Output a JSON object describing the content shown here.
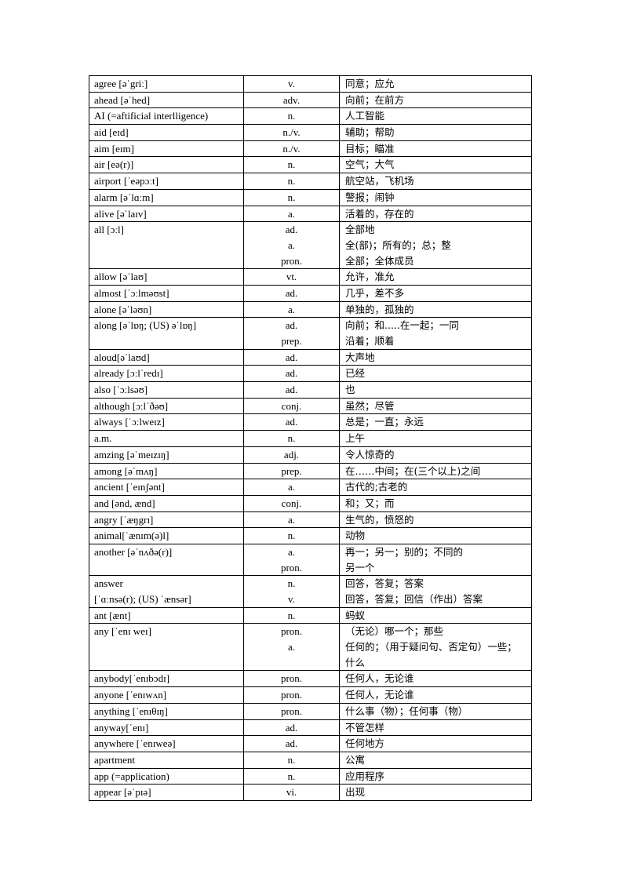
{
  "vocabulary": [
    {
      "word": [
        "agree [əˈgriː]"
      ],
      "pos": [
        "v."
      ],
      "meaning": [
        "同意；应允"
      ]
    },
    {
      "word": [
        "ahead [əˈhed]"
      ],
      "pos": [
        "adv."
      ],
      "meaning": [
        "向前；在前方"
      ]
    },
    {
      "word": [
        "AI (=aftificial interlligence)"
      ],
      "pos": [
        "n."
      ],
      "meaning": [
        "人工智能"
      ]
    },
    {
      "word": [
        "aid [eɪd]"
      ],
      "pos": [
        "n./v."
      ],
      "meaning": [
        "辅助；帮助"
      ]
    },
    {
      "word": [
        "aim [eɪm]"
      ],
      "pos": [
        "n./v."
      ],
      "meaning": [
        "目标；瞄准"
      ]
    },
    {
      "word": [
        "air [eə(r)]"
      ],
      "pos": [
        "n."
      ],
      "meaning": [
        "空气；大气"
      ]
    },
    {
      "word": [
        "airport [ˈeəpɔːt]"
      ],
      "pos": [
        "n."
      ],
      "meaning": [
        "航空站，飞机场"
      ]
    },
    {
      "word": [
        "alarm [əˈlɑːm]"
      ],
      "pos": [
        "n."
      ],
      "meaning": [
        "警报；闹钟"
      ]
    },
    {
      "word": [
        "alive [əˈlaɪv]"
      ],
      "pos": [
        "a."
      ],
      "meaning": [
        "活着的，存在的"
      ]
    },
    {
      "word": [
        "all [ɔːl]"
      ],
      "pos": [
        "ad.",
        "a.",
        "pron."
      ],
      "meaning": [
        "全部地",
        "全(部)；所有的；总；整",
        "全部；全体成员"
      ]
    },
    {
      "word": [
        "allow [əˈlaʊ]"
      ],
      "pos": [
        "vt."
      ],
      "meaning": [
        "允许，准允"
      ]
    },
    {
      "word": [
        "almost [ˈɔːlməʊst]"
      ],
      "pos": [
        "ad."
      ],
      "meaning": [
        "几乎，差不多"
      ]
    },
    {
      "word": [
        "alone [əˈləʊn]"
      ],
      "pos": [
        "a."
      ],
      "meaning": [
        "单独的，孤独的"
      ]
    },
    {
      "word": [
        "along [əˈlɒŋ; (US) əˈlɒŋ]"
      ],
      "pos": [
        "ad.",
        "prep."
      ],
      "meaning": [
        "向前；和.....在一起；一同",
        "沿着；顺着"
      ]
    },
    {
      "word": [
        "aloud[əˈlaʊd]"
      ],
      "pos": [
        "ad."
      ],
      "meaning": [
        "大声地"
      ]
    },
    {
      "word": [
        "already [ɔːlˈredɪ]"
      ],
      "pos": [
        "ad."
      ],
      "meaning": [
        "已经"
      ]
    },
    {
      "word": [
        "also [ˈɔːlsəʊ]"
      ],
      "pos": [
        "ad."
      ],
      "meaning": [
        "也"
      ]
    },
    {
      "word": [
        "although [ɔːlˈðəʊ]"
      ],
      "pos": [
        "conj."
      ],
      "meaning": [
        "虽然；尽管"
      ]
    },
    {
      "word": [
        "always [ˈɔːlweɪz]"
      ],
      "pos": [
        "ad."
      ],
      "meaning": [
        "总是；一直；永远"
      ]
    },
    {
      "word": [
        "a.m."
      ],
      "pos": [
        "n."
      ],
      "meaning": [
        "上午"
      ]
    },
    {
      "word": [
        "amzing [əˈmeɪzɪŋ]"
      ],
      "pos": [
        "adj."
      ],
      "meaning": [
        "令人惊奇的"
      ]
    },
    {
      "word": [
        "among [əˈmʌŋ]"
      ],
      "pos": [
        "prep."
      ],
      "meaning": [
        "在……中间；在(三个以上)之间"
      ]
    },
    {
      "word": [
        "ancient [ˈeɪnʃənt]"
      ],
      "pos": [
        "a."
      ],
      "meaning": [
        "古代的;古老的"
      ]
    },
    {
      "word": [
        "and [ənd, ænd]"
      ],
      "pos": [
        "conj."
      ],
      "meaning": [
        "和；又；而"
      ]
    },
    {
      "word": [
        "angry [ˈæŋgrɪ]"
      ],
      "pos": [
        "a."
      ],
      "meaning": [
        "生气的，愤怒的"
      ]
    },
    {
      "word": [
        "animal[ˈænɪm(ə)l]"
      ],
      "pos": [
        "n."
      ],
      "meaning": [
        "动物"
      ]
    },
    {
      "word": [
        "another [əˈnʌðə(r)]"
      ],
      "pos": [
        "a.",
        "pron."
      ],
      "meaning": [
        "再一；另一；别的；不同的",
        "另一个"
      ]
    },
    {
      "word": [
        "answer",
        "[ˈɑːnsə(r); (US) ˈænsər]"
      ],
      "pos": [
        "n.",
        "v."
      ],
      "meaning": [
        "回答，答复；答案",
        "回答，答复；回信（作出）答案"
      ]
    },
    {
      "word": [
        "ant [ænt]"
      ],
      "pos": [
        "n."
      ],
      "meaning": [
        "蚂蚁"
      ]
    },
    {
      "word": [
        "any [ˈenɪ weɪ]"
      ],
      "pos": [
        "pron.",
        "a."
      ],
      "meaning": [
        "（无论）哪一个；那些",
        "任何的；（用于疑问句、否定句）一些；",
        "什么"
      ]
    },
    {
      "word": [
        "anybody[ˈenɪbɔdɪ]"
      ],
      "pos": [
        "pron."
      ],
      "meaning": [
        "任何人，无论谁"
      ]
    },
    {
      "word": [
        "anyone [ˈenɪwʌn]"
      ],
      "pos": [
        "pron."
      ],
      "meaning": [
        "任何人，无论谁"
      ]
    },
    {
      "word": [
        "anything [ˈenɪθɪŋ]"
      ],
      "pos": [
        "pron."
      ],
      "meaning": [
        "什么事（物）；任何事（物）"
      ]
    },
    {
      "word": [
        "anyway[ˈenɪ]"
      ],
      "pos": [
        "ad."
      ],
      "meaning": [
        "不管怎样"
      ]
    },
    {
      "word": [
        "anywhere [ˈenɪweə]"
      ],
      "pos": [
        "ad."
      ],
      "meaning": [
        "任何地方"
      ]
    },
    {
      "word": [
        "apartment"
      ],
      "pos": [
        "n."
      ],
      "meaning": [
        "公寓"
      ]
    },
    {
      "word": [
        "app (=application)"
      ],
      "pos": [
        "n."
      ],
      "meaning": [
        "应用程序"
      ]
    },
    {
      "word": [
        "appear [əˈpɪə]"
      ],
      "pos": [
        "vi."
      ],
      "meaning": [
        "出现"
      ]
    }
  ]
}
